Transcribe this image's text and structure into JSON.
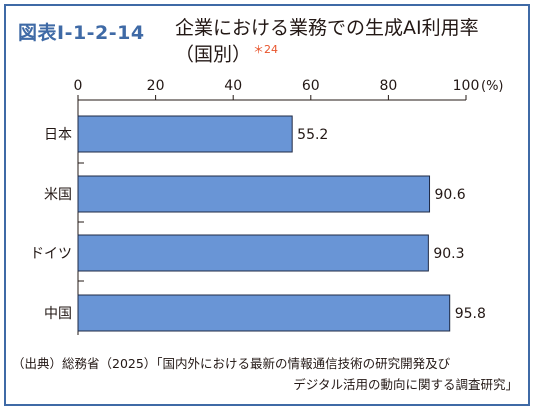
{
  "figure_number": "図表Ⅰ-1-2-14",
  "title_line1": "企業における業務での生成AI利用率",
  "title_line2": "（国別）",
  "title_note": "＊24",
  "source_line1": "（出典）総務省（2025）「国内外における最新の情報通信技術の研究開発及び",
  "source_line2": "デジタル活用の動向に関する調査研究」",
  "colors": {
    "bar": "#6995d6",
    "bar_stroke": "#1f2a44",
    "frame": "#3f6aa6",
    "note": "#e8542c"
  },
  "chart_data": {
    "type": "bar",
    "orientation": "horizontal",
    "categories": [
      "日本",
      "米国",
      "ドイツ",
      "中国"
    ],
    "values": [
      55.2,
      90.6,
      90.3,
      95.8
    ],
    "value_labels": [
      "55.2",
      "90.6",
      "90.3",
      "95.8"
    ],
    "xlim": [
      0,
      100
    ],
    "x_ticks": [
      0,
      20,
      40,
      60,
      80,
      100
    ],
    "x_tick_labels": [
      "0",
      "20",
      "40",
      "60",
      "80",
      "100"
    ],
    "x_unit": "(%)",
    "title": "企業における業務での生成AI利用率（国別）",
    "xlabel": "",
    "ylabel": "",
    "grid": false,
    "legend": "none"
  }
}
